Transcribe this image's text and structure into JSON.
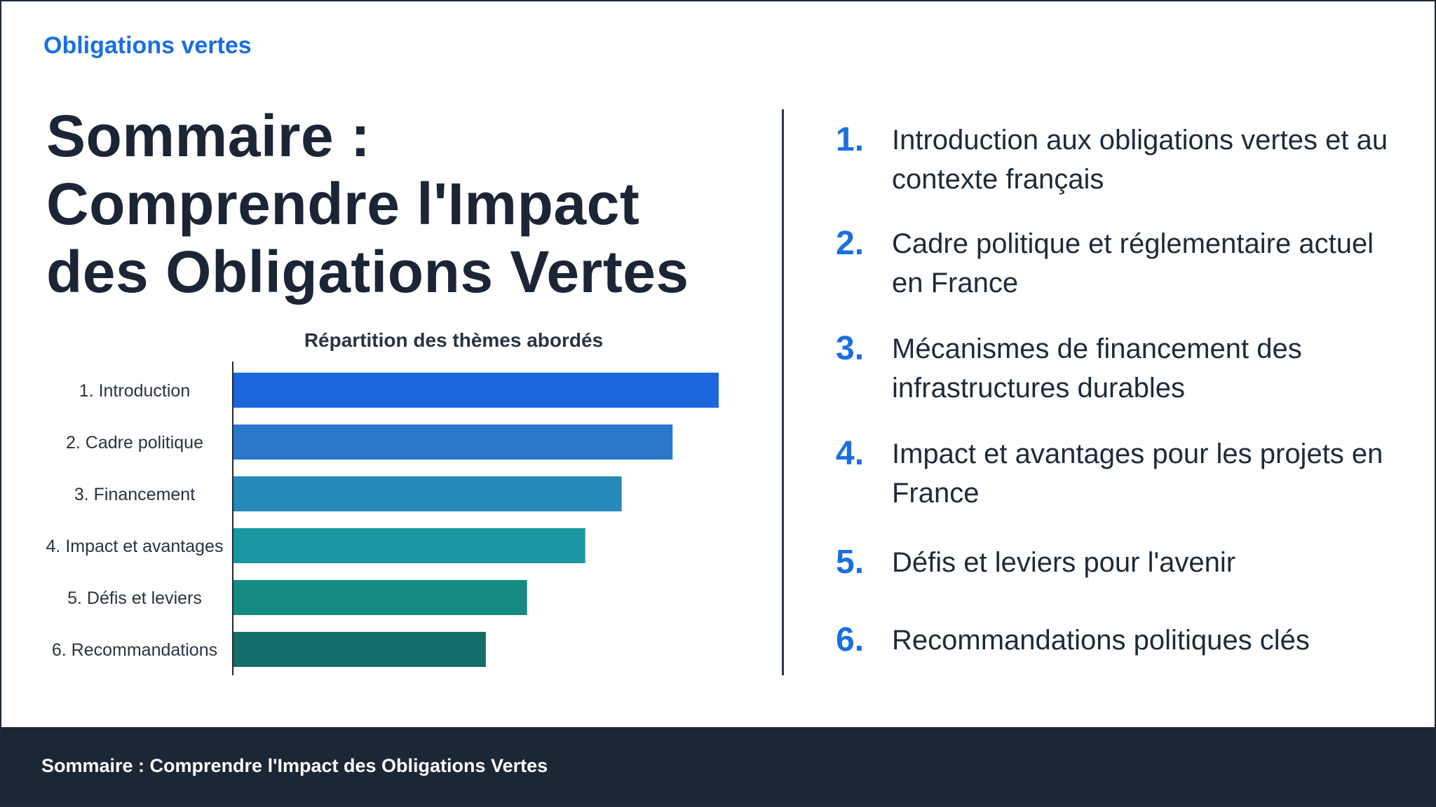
{
  "header": {
    "kicker": "Obligations vertes",
    "title": "Sommaire : Comprendre l'Impact des Obligations Vertes"
  },
  "chart_data": {
    "type": "bar",
    "orientation": "horizontal",
    "title": "Répartition des thèmes abordés",
    "categories": [
      "1. Introduction",
      "2. Cadre politique",
      "3. Financement",
      "4. Impact et avantages",
      "5. Défis et leviers",
      "6. Recommandations"
    ],
    "values": [
      100,
      90.5,
      80,
      72.5,
      60.5,
      52
    ],
    "colors": [
      "#1b66dc",
      "#2a78cc",
      "#2689b8",
      "#1a97a0",
      "#148a80",
      "#116e68"
    ],
    "xlim": [
      0,
      100
    ],
    "grid": false,
    "legend": "none"
  },
  "agenda": [
    {
      "num": "1.",
      "text": "Introduction aux obligations vertes et au contexte français"
    },
    {
      "num": "2.",
      "text": "Cadre politique et réglementaire actuel en France"
    },
    {
      "num": "3.",
      "text": "Mécanismes de financement des infrastructures durables"
    },
    {
      "num": "4.",
      "text": "Impact et avantages pour les projets en France"
    },
    {
      "num": "5.",
      "text": "Défis et leviers pour l'avenir"
    },
    {
      "num": "6.",
      "text": "Recommandations politiques clés"
    }
  ],
  "footer": {
    "text": "Sommaire : Comprendre l'Impact des Obligations Vertes"
  },
  "colors": {
    "accent": "#1a6fe0",
    "text_dark": "#1b2535",
    "footer_bg": "#1c2735"
  }
}
